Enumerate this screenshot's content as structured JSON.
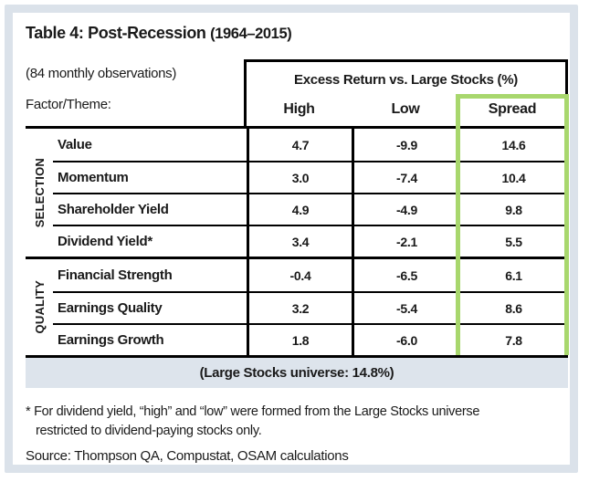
{
  "title": {
    "main": "Table 4: Post-Recession",
    "period": "(1964–2015)"
  },
  "header": {
    "observations": "(84 monthly observations)",
    "factor_theme_label": "Factor/Theme:",
    "excess_title": "Excess Return vs. Large Stocks (%)",
    "columns": [
      "High",
      "Low",
      "Spread"
    ]
  },
  "table": {
    "groups": [
      {
        "label": "SELECTION",
        "rows": [
          {
            "factor": "Value",
            "high": "4.7",
            "low": "-9.9",
            "spread": "14.6"
          },
          {
            "factor": "Momentum",
            "high": "3.0",
            "low": "-7.4",
            "spread": "10.4"
          },
          {
            "factor": "Shareholder Yield",
            "high": "4.9",
            "low": "-4.9",
            "spread": "9.8"
          },
          {
            "factor": "Dividend Yield*",
            "high": "3.4",
            "low": "-2.1",
            "spread": "5.5"
          }
        ]
      },
      {
        "label": "QUALITY",
        "rows": [
          {
            "factor": "Financial Strength",
            "high": "-0.4",
            "low": "-6.5",
            "spread": "6.1"
          },
          {
            "factor": "Earnings Quality",
            "high": "3.2",
            "low": "-5.4",
            "spread": "8.6"
          },
          {
            "factor": "Earnings Growth",
            "high": "1.8",
            "low": "-6.0",
            "spread": "7.8"
          }
        ]
      }
    ],
    "footer_note": "(Large Stocks universe: 14.8%)"
  },
  "notes": {
    "footnote": "* For dividend yield, “high” and “low” were formed from the Large Stocks universe restricted to dividend-paying stocks only.",
    "source": "Source: Thompson QA, Compustat, OSAM calculations"
  },
  "colors": {
    "highlight_green": "#a8d76d",
    "footer_row_bg": "#dde4ec",
    "frame_border": "#dbe2ea",
    "line_black": "#000000"
  }
}
